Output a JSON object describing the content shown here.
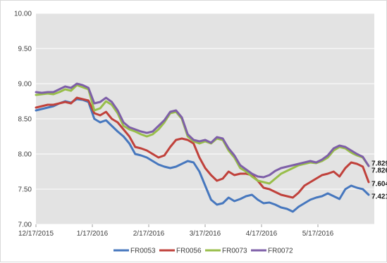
{
  "chart_data": {
    "type": "line",
    "title": "",
    "xlabel": "",
    "ylabel": "",
    "ylim": [
      7.0,
      10.0
    ],
    "y_ticks": [
      "10.00",
      "9.50",
      "9.00",
      "8.50",
      "8.00",
      "7.50",
      "7.00"
    ],
    "x_ticks": [
      "12/17/2015",
      "1/17/2016",
      "2/17/2016",
      "3/17/2016",
      "4/17/2016",
      "5/17/2016"
    ],
    "grid": "horizontal",
    "plot_background": "#e3e3e3",
    "legend_position": "bottom",
    "x_count": 58,
    "series": [
      {
        "name": "FR0053",
        "color": "#4677be",
        "end_label": "7.421",
        "values": [
          8.62,
          8.64,
          8.66,
          8.68,
          8.72,
          8.75,
          8.73,
          8.78,
          8.77,
          8.74,
          8.5,
          8.45,
          8.48,
          8.4,
          8.32,
          8.25,
          8.15,
          8.0,
          7.98,
          7.95,
          7.9,
          7.85,
          7.82,
          7.8,
          7.82,
          7.86,
          7.9,
          7.88,
          7.75,
          7.55,
          7.35,
          7.28,
          7.3,
          7.38,
          7.33,
          7.36,
          7.4,
          7.42,
          7.35,
          7.3,
          7.31,
          7.28,
          7.24,
          7.22,
          7.18,
          7.25,
          7.3,
          7.35,
          7.38,
          7.4,
          7.44,
          7.4,
          7.36,
          7.5,
          7.55,
          7.52,
          7.5,
          7.42
        ]
      },
      {
        "name": "FR0056",
        "color": "#c0413b",
        "end_label": "7.604",
        "values": [
          8.66,
          8.68,
          8.7,
          8.7,
          8.72,
          8.74,
          8.72,
          8.8,
          8.78,
          8.76,
          8.58,
          8.55,
          8.6,
          8.5,
          8.45,
          8.35,
          8.25,
          8.1,
          8.08,
          8.05,
          8.0,
          7.95,
          7.98,
          8.1,
          8.2,
          8.22,
          8.2,
          8.15,
          7.95,
          7.8,
          7.7,
          7.62,
          7.65,
          7.75,
          7.7,
          7.72,
          7.72,
          7.7,
          7.62,
          7.52,
          7.5,
          7.46,
          7.42,
          7.4,
          7.38,
          7.45,
          7.55,
          7.6,
          7.65,
          7.7,
          7.72,
          7.75,
          7.68,
          7.8,
          7.88,
          7.86,
          7.82,
          7.6
        ]
      },
      {
        "name": "FR0073",
        "color": "#98be4a",
        "end_label": "7.826",
        "values": [
          8.84,
          8.85,
          8.86,
          8.85,
          8.88,
          8.92,
          8.9,
          8.98,
          8.95,
          8.92,
          8.62,
          8.65,
          8.75,
          8.7,
          8.58,
          8.4,
          8.35,
          8.32,
          8.28,
          8.25,
          8.28,
          8.35,
          8.45,
          8.58,
          8.6,
          8.5,
          8.25,
          8.18,
          8.15,
          8.18,
          8.15,
          8.22,
          8.2,
          8.05,
          7.95,
          7.8,
          7.75,
          7.68,
          7.62,
          7.6,
          7.58,
          7.65,
          7.72,
          7.76,
          7.8,
          7.84,
          7.86,
          7.88,
          7.87,
          7.9,
          7.95,
          8.05,
          8.1,
          8.08,
          8.02,
          7.98,
          7.95,
          7.83
        ]
      },
      {
        "name": "FR0072",
        "color": "#7e5fa8",
        "end_label": "7.829",
        "values": [
          8.88,
          8.87,
          8.88,
          8.88,
          8.92,
          8.96,
          8.94,
          9.0,
          8.98,
          8.94,
          8.72,
          8.74,
          8.8,
          8.74,
          8.62,
          8.45,
          8.38,
          8.35,
          8.32,
          8.3,
          8.32,
          8.4,
          8.48,
          8.6,
          8.62,
          8.52,
          8.28,
          8.2,
          8.18,
          8.2,
          8.16,
          8.24,
          8.22,
          8.08,
          7.98,
          7.84,
          7.78,
          7.72,
          7.68,
          7.67,
          7.7,
          7.76,
          7.8,
          7.82,
          7.84,
          7.86,
          7.88,
          7.9,
          7.88,
          7.92,
          7.98,
          8.08,
          8.12,
          8.1,
          8.05,
          8.0,
          7.96,
          7.83
        ]
      }
    ]
  }
}
